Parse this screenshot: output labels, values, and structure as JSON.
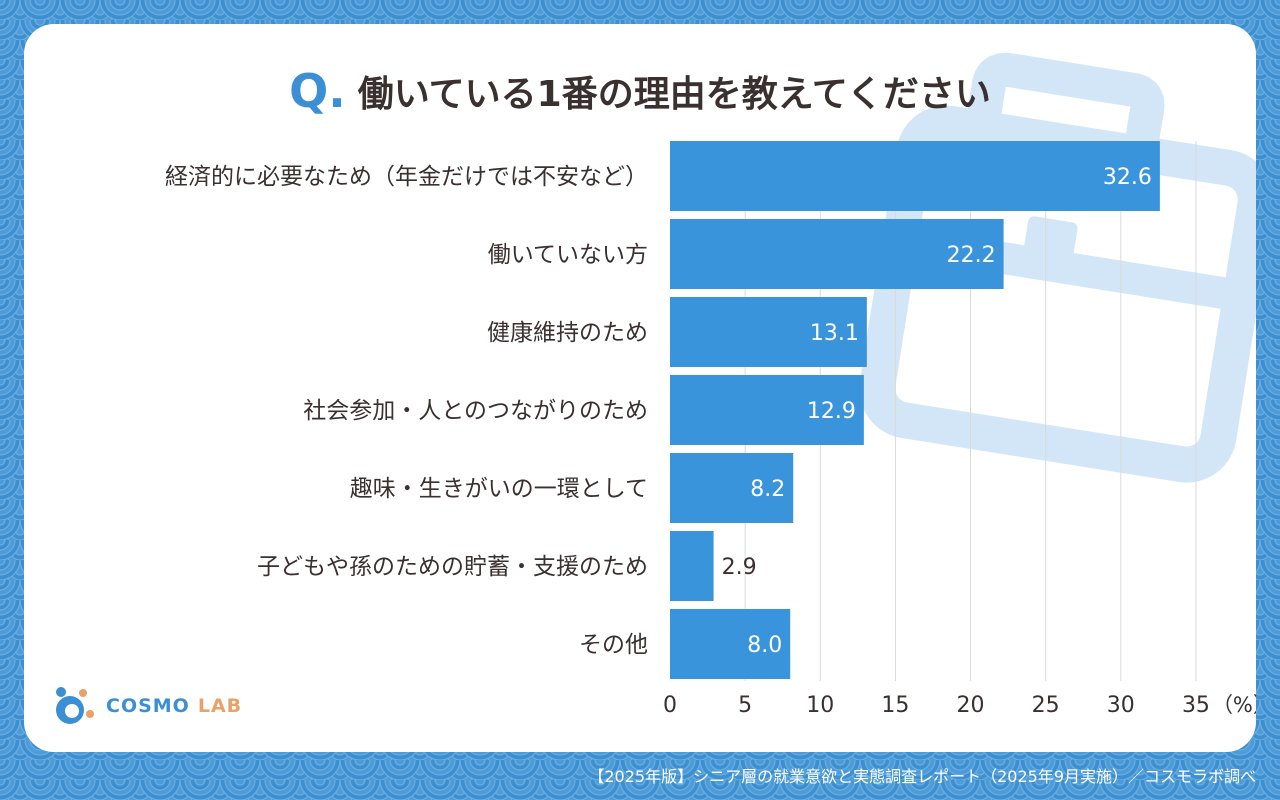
{
  "title": {
    "q": "Q.",
    "text": "働いている1番の理由を教えてください"
  },
  "logo": {
    "word1": "COSMO",
    "word2": "LAB"
  },
  "footer": "【2025年版】シニア層の就業意欲と実態調査レポート（2025年9月実施）／コスモラボ調べ",
  "colors": {
    "bar": "#3a94dc",
    "background": "#3d8fd0",
    "card": "#ffffff",
    "text": "#3a3030",
    "grid": "#d9d9d9",
    "accent": "#3b8fd4",
    "logo_orange": "#e8a269"
  },
  "chart_data": {
    "type": "bar",
    "orientation": "horizontal",
    "categories": [
      "経済的に必要なため（年金だけでは不安など）",
      "働いていない方",
      "健康維持のため",
      "社会参加・人とのつながりのため",
      "趣味・生きがいの一環として",
      "子どもや孫のための貯蓄・支援のため",
      "その他"
    ],
    "values": [
      32.6,
      22.2,
      13.1,
      12.9,
      8.2,
      2.9,
      8.0
    ],
    "value_labels": [
      "32.6",
      "22.2",
      "13.1",
      "12.9",
      "8.2",
      "2.9",
      "8.0"
    ],
    "xlim": [
      0,
      37
    ],
    "ticks": [
      0,
      5,
      10,
      15,
      20,
      25,
      30,
      35
    ],
    "tick_labels": [
      "0",
      "5",
      "10",
      "15",
      "20",
      "25",
      "30",
      "35"
    ],
    "unit": "（%）",
    "grid": true
  }
}
